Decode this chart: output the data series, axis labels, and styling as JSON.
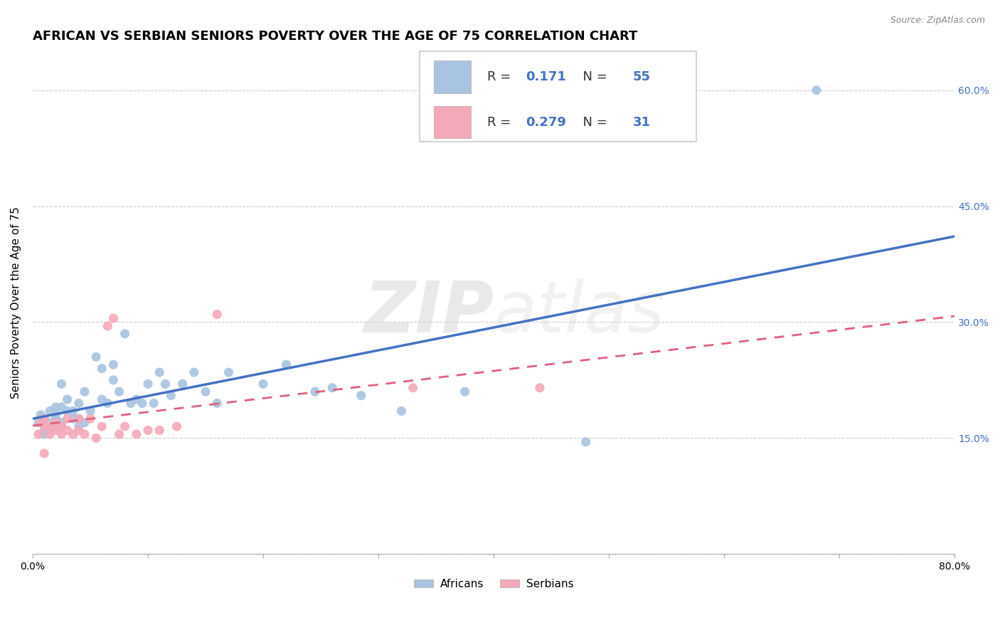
{
  "title": "AFRICAN VS SERBIAN SENIORS POVERTY OVER THE AGE OF 75 CORRELATION CHART",
  "source": "Source: ZipAtlas.com",
  "ylabel": "Seniors Poverty Over the Age of 75",
  "xlim": [
    0.0,
    0.8
  ],
  "ylim": [
    0.0,
    0.65
  ],
  "xticks": [
    0.0,
    0.1,
    0.2,
    0.3,
    0.4,
    0.5,
    0.6,
    0.7,
    0.8
  ],
  "yticks": [
    0.0,
    0.15,
    0.3,
    0.45,
    0.6
  ],
  "african_color": "#a8c4e0",
  "serbian_color": "#f4a9b8",
  "african_line_color": "#4472c4",
  "serbian_line_color": "#e06080",
  "african_R": 0.171,
  "african_N": 55,
  "serbian_R": 0.279,
  "serbian_N": 31,
  "africans_x": [
    0.005,
    0.007,
    0.01,
    0.01,
    0.01,
    0.015,
    0.015,
    0.015,
    0.02,
    0.02,
    0.02,
    0.02,
    0.025,
    0.025,
    0.025,
    0.03,
    0.03,
    0.035,
    0.035,
    0.04,
    0.04,
    0.04,
    0.045,
    0.045,
    0.05,
    0.055,
    0.06,
    0.06,
    0.065,
    0.07,
    0.07,
    0.075,
    0.08,
    0.085,
    0.09,
    0.095,
    0.1,
    0.105,
    0.11,
    0.115,
    0.12,
    0.13,
    0.14,
    0.15,
    0.16,
    0.17,
    0.2,
    0.22,
    0.245,
    0.26,
    0.285,
    0.32,
    0.375,
    0.48,
    0.68
  ],
  "africans_y": [
    0.17,
    0.18,
    0.175,
    0.16,
    0.155,
    0.185,
    0.17,
    0.16,
    0.19,
    0.18,
    0.175,
    0.165,
    0.22,
    0.19,
    0.17,
    0.2,
    0.185,
    0.185,
    0.175,
    0.195,
    0.175,
    0.165,
    0.21,
    0.17,
    0.185,
    0.255,
    0.24,
    0.2,
    0.195,
    0.245,
    0.225,
    0.21,
    0.285,
    0.195,
    0.2,
    0.195,
    0.22,
    0.195,
    0.235,
    0.22,
    0.205,
    0.22,
    0.235,
    0.21,
    0.195,
    0.235,
    0.22,
    0.245,
    0.21,
    0.215,
    0.205,
    0.185,
    0.21,
    0.145,
    0.6
  ],
  "serbians_x": [
    0.005,
    0.007,
    0.01,
    0.01,
    0.01,
    0.015,
    0.015,
    0.02,
    0.02,
    0.025,
    0.025,
    0.03,
    0.03,
    0.035,
    0.04,
    0.04,
    0.045,
    0.05,
    0.055,
    0.06,
    0.065,
    0.07,
    0.075,
    0.08,
    0.09,
    0.1,
    0.11,
    0.125,
    0.16,
    0.33,
    0.44
  ],
  "serbians_y": [
    0.155,
    0.17,
    0.175,
    0.165,
    0.13,
    0.165,
    0.155,
    0.17,
    0.16,
    0.165,
    0.155,
    0.175,
    0.16,
    0.155,
    0.175,
    0.16,
    0.155,
    0.175,
    0.15,
    0.165,
    0.295,
    0.305,
    0.155,
    0.165,
    0.155,
    0.16,
    0.16,
    0.165,
    0.31,
    0.215,
    0.215
  ],
  "background_color": "#ffffff",
  "grid_color": "#cccccc",
  "title_fontsize": 13,
  "axis_fontsize": 11,
  "tick_fontsize": 10,
  "dot_size": 90
}
